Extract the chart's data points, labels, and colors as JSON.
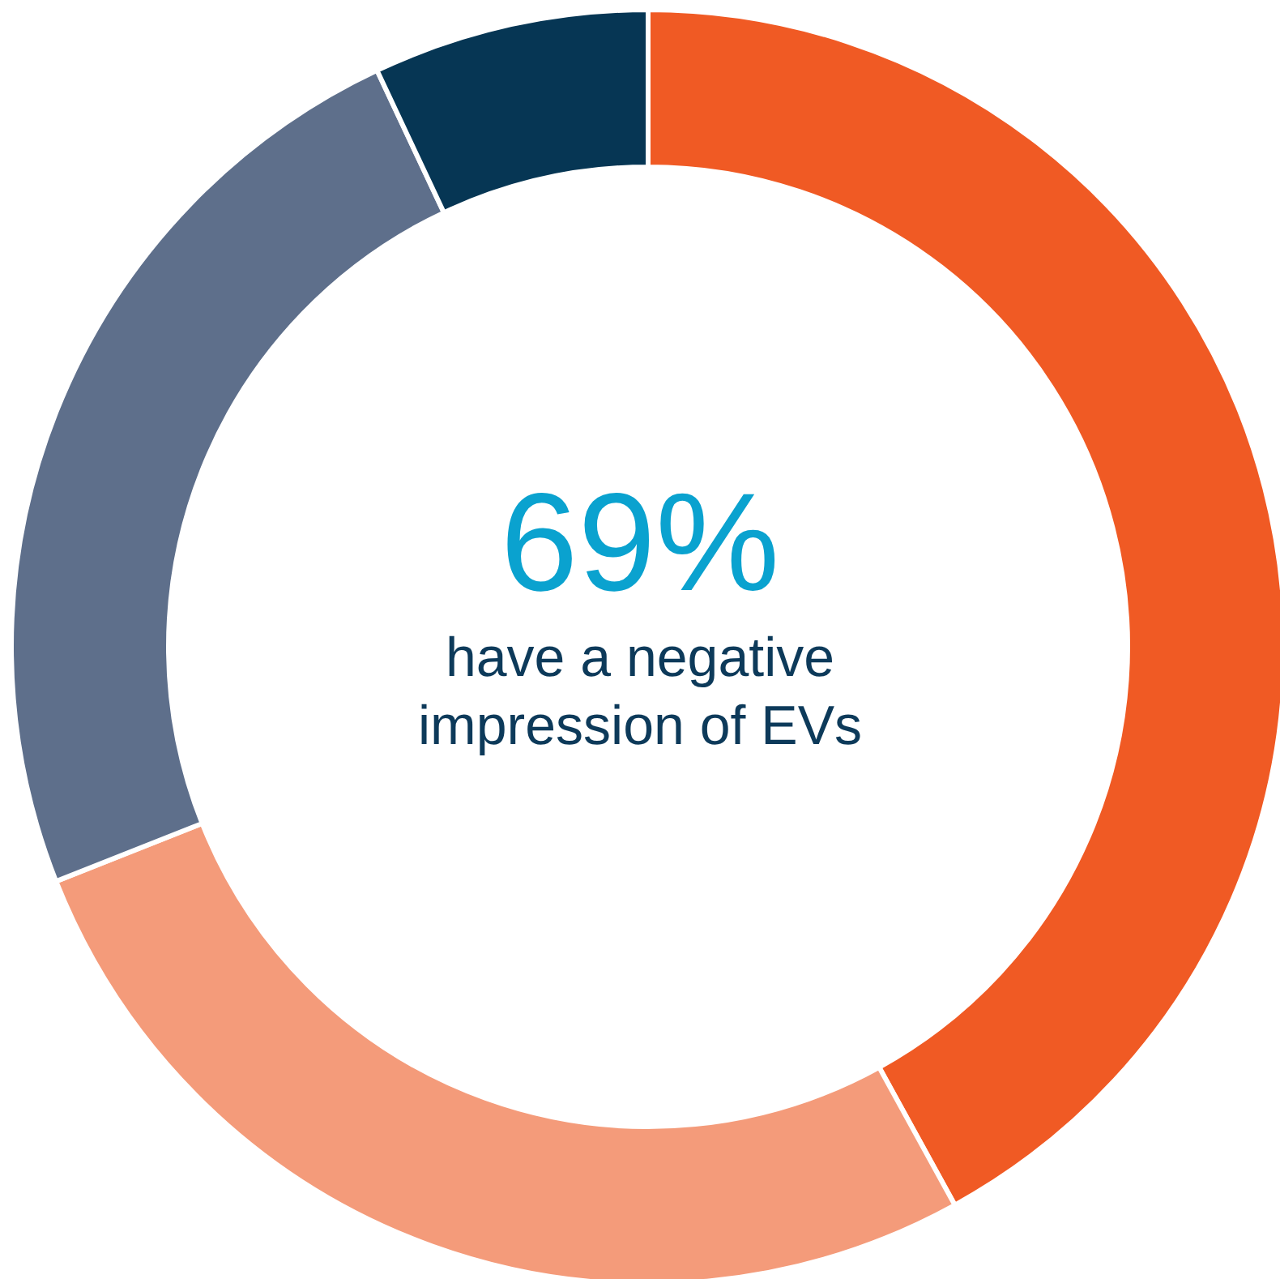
{
  "chart_data": {
    "type": "donut",
    "categories": [
      null,
      null,
      null,
      null
    ],
    "values": [
      42,
      27,
      24,
      7
    ],
    "colors": [
      "#f05a24",
      "#f49b7a",
      "#5e6f8b",
      "#063654"
    ],
    "annotations": [
      "69%",
      "have a negative impression of EVs"
    ]
  }
}
